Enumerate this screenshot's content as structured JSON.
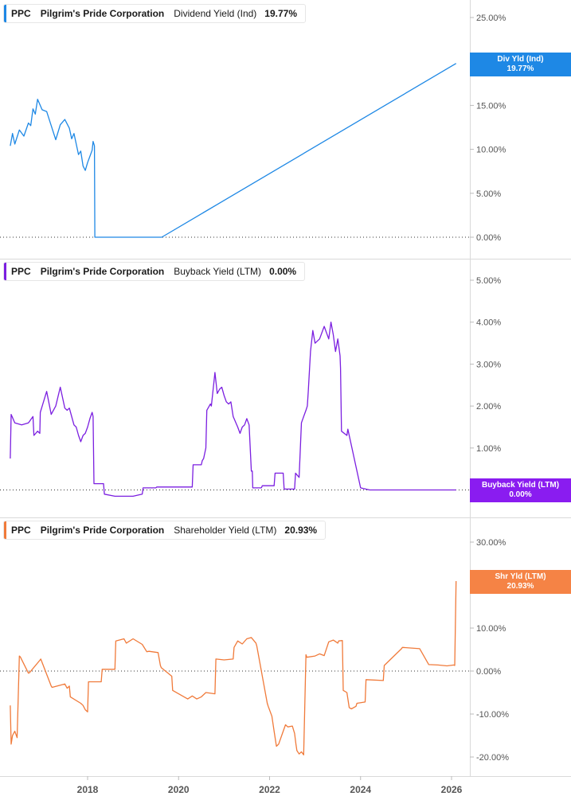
{
  "chart_data": [
    {
      "type": "line",
      "legend": {
        "ticker": "PPC",
        "company": "Pilgrim's Pride Corporation",
        "metric": "Dividend Yield (Ind)",
        "value": "19.77%"
      },
      "tag": {
        "label": "Div Yld (Ind)",
        "value": "19.77%"
      },
      "color": "#1e88e5",
      "tag_color": "#1e88e5",
      "yticks": [
        0,
        5,
        10,
        15,
        20,
        25
      ],
      "ytick_labels": [
        "0.00%",
        "5.00%",
        "10.00%",
        "15.00%",
        "",
        "25.00%"
      ],
      "ylim": [
        0,
        26.5
      ],
      "zero_line": 0,
      "series": [
        {
          "x": [
            2016.3,
            2016.35,
            2016.4,
            2016.5,
            2016.6,
            2016.7,
            2016.75,
            2016.8,
            2016.85,
            2016.9,
            2017.0,
            2017.1,
            2017.2,
            2017.3,
            2017.4,
            2017.5,
            2017.6,
            2017.65,
            2017.7,
            2017.8,
            2017.85,
            2017.9,
            2017.95,
            2018.0,
            2018.05,
            2018.1,
            2018.12,
            2018.15,
            2018.16,
            2019.63,
            2026.1
          ],
          "y": [
            10.4,
            11.8,
            10.6,
            12.2,
            11.5,
            13.0,
            12.7,
            14.6,
            14.0,
            15.7,
            14.5,
            14.3,
            12.7,
            11.1,
            12.8,
            13.4,
            12.4,
            11.2,
            11.8,
            9.4,
            9.8,
            8.1,
            7.6,
            8.5,
            9.2,
            9.9,
            10.9,
            10.4,
            0.0,
            0.0,
            19.77
          ]
        }
      ]
    },
    {
      "type": "line",
      "legend": {
        "ticker": "PPC",
        "company": "Pilgrim's Pride Corporation",
        "metric": "Buyback Yield (LTM)",
        "value": "0.00%"
      },
      "tag": {
        "label": "Buyback Yield (LTM)",
        "value": "0.00%"
      },
      "color": "#7b1fe0",
      "tag_color": "#8a1cf0",
      "yticks": [
        1,
        2,
        3,
        4,
        5
      ],
      "ytick_labels": [
        "1.00%",
        "2.00%",
        "3.00%",
        "4.00%",
        "5.00%"
      ],
      "ylim": [
        -0.3,
        5.1
      ],
      "zero_line": 0,
      "series": [
        {
          "x": [
            2016.3,
            2016.32,
            2016.4,
            2016.55,
            2016.7,
            2016.8,
            2016.82,
            2016.9,
            2016.95,
            2016.96,
            2017.1,
            2017.2,
            2017.3,
            2017.4,
            2017.5,
            2017.55,
            2017.6,
            2017.65,
            2017.7,
            2017.75,
            2017.8,
            2017.85,
            2017.9,
            2017.95,
            2018.0,
            2018.05,
            2018.1,
            2018.12,
            2018.14,
            2018.15,
            2018.35,
            2018.37,
            2018.6,
            2019.0,
            2019.2,
            2019.22,
            2019.5,
            2019.52,
            2020.3,
            2020.32,
            2020.5,
            2020.52,
            2020.55,
            2020.6,
            2020.62,
            2020.7,
            2020.72,
            2020.8,
            2020.85,
            2020.9,
            2020.95,
            2021.0,
            2021.05,
            2021.1,
            2021.15,
            2021.2,
            2021.3,
            2021.35,
            2021.4,
            2021.45,
            2021.5,
            2021.55,
            2021.6,
            2021.62,
            2021.63,
            2021.82,
            2021.84,
            2022.1,
            2022.12,
            2022.3,
            2022.32,
            2022.55,
            2022.57,
            2022.65,
            2022.7,
            2022.75,
            2022.8,
            2022.83,
            2022.85,
            2022.9,
            2022.95,
            2023.0,
            2023.1,
            2023.2,
            2023.3,
            2023.35,
            2023.4,
            2023.45,
            2023.5,
            2023.55,
            2023.56,
            2023.58,
            2023.7,
            2023.72,
            2024.0,
            2024.2,
            2024.22,
            2026.1
          ],
          "y": [
            0.75,
            1.8,
            1.6,
            1.55,
            1.6,
            1.75,
            1.3,
            1.4,
            1.35,
            1.85,
            2.35,
            1.8,
            2.0,
            2.45,
            1.95,
            1.9,
            1.95,
            1.75,
            1.55,
            1.5,
            1.3,
            1.15,
            1.3,
            1.35,
            1.5,
            1.7,
            1.85,
            1.75,
            0.15,
            0.15,
            0.15,
            -0.1,
            -0.15,
            -0.15,
            -0.1,
            0.05,
            0.05,
            0.07,
            0.07,
            0.6,
            0.6,
            0.7,
            0.75,
            1.0,
            1.9,
            2.05,
            2.0,
            2.8,
            2.3,
            2.4,
            2.45,
            2.25,
            2.1,
            2.05,
            2.1,
            1.75,
            1.5,
            1.35,
            1.5,
            1.55,
            1.7,
            1.55,
            0.45,
            0.45,
            0.05,
            0.05,
            0.1,
            0.1,
            0.4,
            0.4,
            0.02,
            0.02,
            0.4,
            0.3,
            1.6,
            1.75,
            1.9,
            2.0,
            2.35,
            3.3,
            3.8,
            3.5,
            3.6,
            3.9,
            3.6,
            4.0,
            3.7,
            3.3,
            3.6,
            3.2,
            2.9,
            1.4,
            1.3,
            1.45,
            0.05,
            0.0,
            0.0,
            0.0
          ]
        }
      ]
    },
    {
      "type": "line",
      "legend": {
        "ticker": "PPC",
        "company": "Pilgrim's Pride Corporation",
        "metric": "Shareholder Yield (LTM)",
        "value": "20.93%"
      },
      "tag": {
        "label": "Shr Yld (LTM)",
        "value": "20.93%"
      },
      "color": "#f07a3a",
      "tag_color": "#f58345",
      "yticks": [
        -20,
        -10,
        0,
        10,
        20,
        30
      ],
      "ytick_labels": [
        "-20.00%",
        "-10.00%",
        "0.00%",
        "10.00%",
        "20.00%",
        "30.00%"
      ],
      "ylim": [
        -24.5,
        34
      ],
      "zero_line": 0,
      "series": [
        {
          "x": [
            2016.3,
            2016.32,
            2016.35,
            2016.4,
            2016.45,
            2016.5,
            2016.52,
            2016.7,
            2016.72,
            2016.95,
            2016.97,
            2017.2,
            2017.22,
            2017.5,
            2017.55,
            2017.6,
            2017.62,
            2017.85,
            2017.9,
            2017.95,
            2018.0,
            2018.02,
            2018.3,
            2018.32,
            2018.6,
            2018.62,
            2018.8,
            2018.85,
            2019.0,
            2019.2,
            2019.3,
            2019.35,
            2019.55,
            2019.6,
            2019.62,
            2019.85,
            2019.87,
            2020.2,
            2020.3,
            2020.4,
            2020.5,
            2020.6,
            2020.8,
            2020.82,
            2021.0,
            2021.2,
            2021.22,
            2021.3,
            2021.4,
            2021.5,
            2021.6,
            2021.7,
            2021.72,
            2021.95,
            2021.97,
            2022.05,
            2022.1,
            2022.15,
            2022.2,
            2022.3,
            2022.35,
            2022.4,
            2022.5,
            2022.55,
            2022.58,
            2022.6,
            2022.65,
            2022.7,
            2022.75,
            2022.8,
            2022.82,
            2023.0,
            2023.1,
            2023.2,
            2023.3,
            2023.4,
            2023.5,
            2023.52,
            2023.6,
            2023.62,
            2023.7,
            2023.75,
            2023.8,
            2023.9,
            2023.92,
            2024.1,
            2024.12,
            2024.5,
            2024.52,
            2024.9,
            2024.92,
            2025.3,
            2025.5,
            2025.7,
            2025.9,
            2026.05,
            2026.07,
            2026.1
          ],
          "y": [
            -8,
            -17,
            -15,
            -14,
            -15.5,
            3.5,
            3.3,
            -0.5,
            -0.4,
            2.5,
            2.8,
            -3.5,
            -3.8,
            -3,
            -4,
            -3.5,
            -6,
            -7.5,
            -8,
            -9,
            -9.5,
            -2.5,
            -2.5,
            0.4,
            0.4,
            7,
            7.5,
            6.5,
            7.5,
            6.2,
            4.5,
            4.6,
            4.3,
            1.3,
            0.8,
            -1.2,
            -4.5,
            -6.5,
            -5.8,
            -6.5,
            -6,
            -5,
            -5.3,
            2.8,
            2.6,
            2.8,
            5.5,
            7,
            6.3,
            7.5,
            7.8,
            6.5,
            5.8,
            -7.5,
            -8.2,
            -10.5,
            -14,
            -17.5,
            -17,
            -14,
            -12.5,
            -13,
            -12.8,
            -14.5,
            -17,
            -18.5,
            -19.3,
            -18.8,
            -19.5,
            3.8,
            3.2,
            3.5,
            4,
            3.6,
            6.8,
            7.2,
            6.5,
            7,
            7.1,
            -4.5,
            -5,
            -8.5,
            -8.8,
            -8.2,
            -7.5,
            -7.2,
            -2,
            -2.2,
            1.3,
            5.2,
            5.5,
            5.2,
            1.5,
            1.4,
            1.2,
            1.4,
            1.3,
            20.93
          ]
        }
      ]
    }
  ],
  "x_axis": {
    "ticks": [
      2018,
      2020,
      2022,
      2024,
      2026
    ],
    "labels": [
      "2018",
      "2020",
      "2022",
      "2024",
      "2026"
    ],
    "range": [
      2016.3,
      2026.7
    ]
  }
}
